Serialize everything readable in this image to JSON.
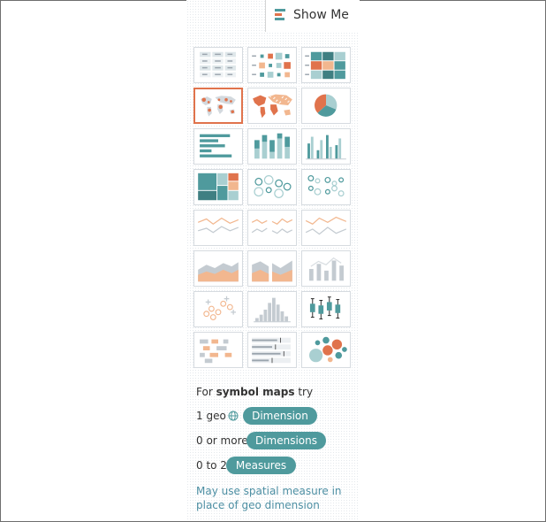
{
  "tab": {
    "label": "Show Me",
    "icon": "show-me-icon"
  },
  "thumbnails": [
    {
      "name": "text-table-thumb",
      "icon": "text-table"
    },
    {
      "name": "heat-map-thumb",
      "icon": "heat-map"
    },
    {
      "name": "highlight-table-thumb",
      "icon": "highlight-table"
    },
    {
      "name": "symbol-map-thumb",
      "icon": "symbol-map",
      "selected": true
    },
    {
      "name": "filled-map-thumb",
      "icon": "filled-map"
    },
    {
      "name": "pie-chart-thumb",
      "icon": "pie-chart"
    },
    {
      "name": "horizontal-bars-thumb",
      "icon": "horizontal-bars"
    },
    {
      "name": "stacked-bars-thumb",
      "icon": "stacked-bars"
    },
    {
      "name": "side-by-side-bars-thumb",
      "icon": "side-by-side-bars"
    },
    {
      "name": "treemap-thumb",
      "icon": "treemap"
    },
    {
      "name": "circle-views-thumb",
      "icon": "circle-views"
    },
    {
      "name": "side-by-side-circles-thumb",
      "icon": "side-by-side-circles"
    },
    {
      "name": "continuous-lines-thumb",
      "icon": "continuous-lines"
    },
    {
      "name": "discrete-lines-thumb",
      "icon": "discrete-lines"
    },
    {
      "name": "dual-lines-thumb",
      "icon": "dual-lines"
    },
    {
      "name": "continuous-area-thumb",
      "icon": "continuous-area"
    },
    {
      "name": "discrete-area-thumb",
      "icon": "discrete-area"
    },
    {
      "name": "dual-combination-thumb",
      "icon": "dual-combination"
    },
    {
      "name": "scatter-plot-thumb",
      "icon": "scatter-plot"
    },
    {
      "name": "histogram-thumb",
      "icon": "histogram"
    },
    {
      "name": "box-whisker-thumb",
      "icon": "box-whisker"
    },
    {
      "name": "gantt-chart-thumb",
      "icon": "gantt-chart"
    },
    {
      "name": "bullet-graph-thumb",
      "icon": "bullet-graph"
    },
    {
      "name": "packed-bubbles-thumb",
      "icon": "packed-bubbles"
    }
  ],
  "hint": {
    "prefix": "For",
    "chart_name": "symbol maps",
    "suffix": "try",
    "requirements": [
      {
        "label": "1 geo",
        "has_globe": true,
        "pill": "Dimension"
      },
      {
        "label": "0 or more",
        "has_globe": false,
        "pill": "Dimensions"
      },
      {
        "label": "0 to 2",
        "has_globe": false,
        "pill": "Measures"
      }
    ],
    "note": "May use spatial measure in place of geo dimension"
  },
  "colors": {
    "teal": "#4f9a9d",
    "light_teal": "#a9cfd1",
    "orange": "#e0734c",
    "light_orange": "#f2b78f",
    "gray": "#c4cbd1",
    "note": "#4d8fa3"
  }
}
